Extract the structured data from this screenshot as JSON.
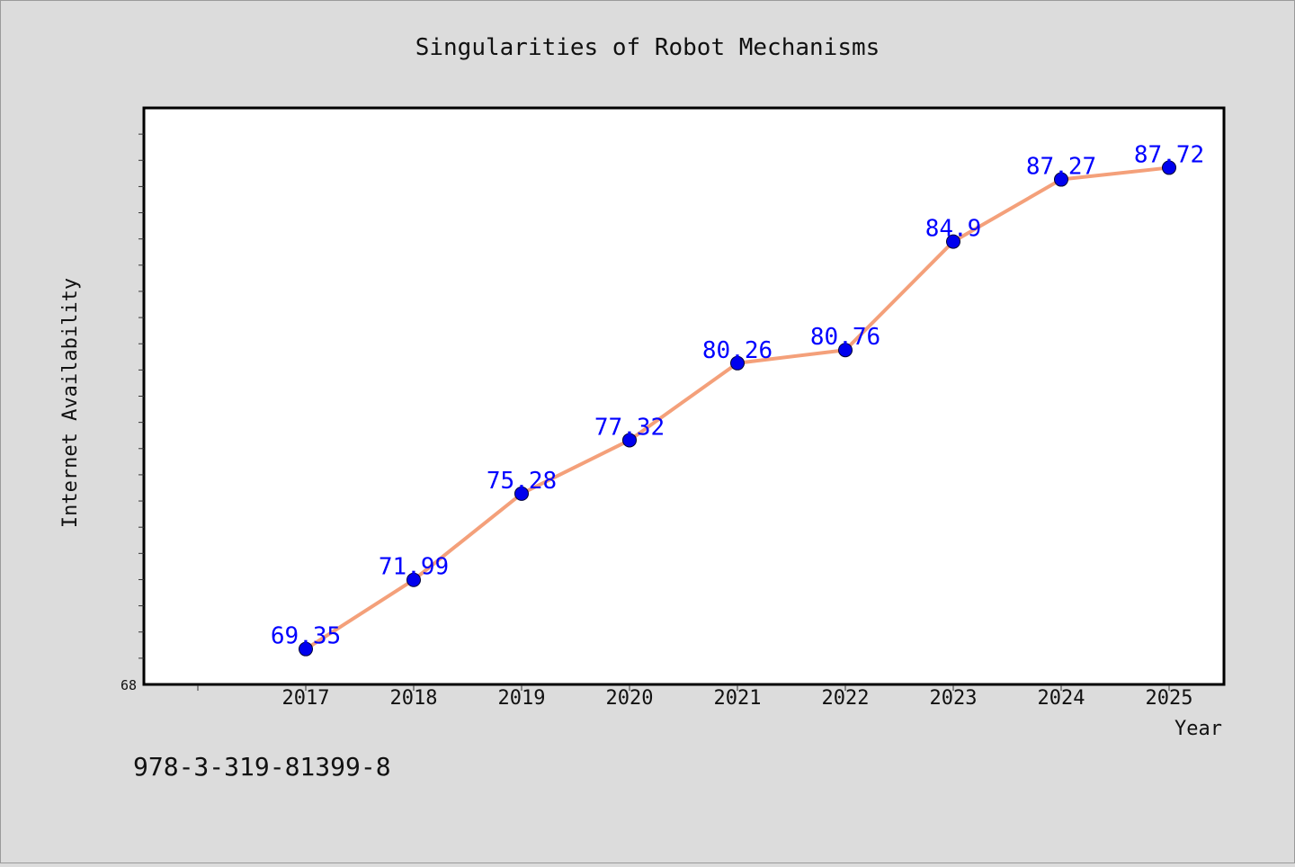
{
  "chart_data": {
    "type": "line",
    "title": "Singularities of Robot Mechanisms",
    "xlabel": "Year",
    "ylabel": "Internet Availability",
    "x": [
      "2017",
      "2018",
      "2019",
      "2020",
      "2021",
      "2022",
      "2023",
      "2024",
      "2025"
    ],
    "series": [
      {
        "values": [
          69.35,
          71.99,
          75.28,
          77.32,
          80.26,
          80.76,
          84.9,
          87.27,
          87.72
        ],
        "data_labels": [
          "69.35",
          "71.99",
          "75.28",
          "77.32",
          "80.26",
          "80.76",
          "84.9",
          "87.27",
          "87.72"
        ]
      }
    ],
    "ylim": [
      68,
      90
    ],
    "y_tick_labels": [
      "68"
    ],
    "grid": false,
    "legend": "none"
  },
  "footer": {
    "isbn": "978-3-319-81399-8"
  },
  "colors": {
    "background": "#dcdcdc",
    "plot_background": "#ffffff",
    "line": "#f4a07a",
    "marker": "#0000ee",
    "data_label": "#0000ff"
  }
}
